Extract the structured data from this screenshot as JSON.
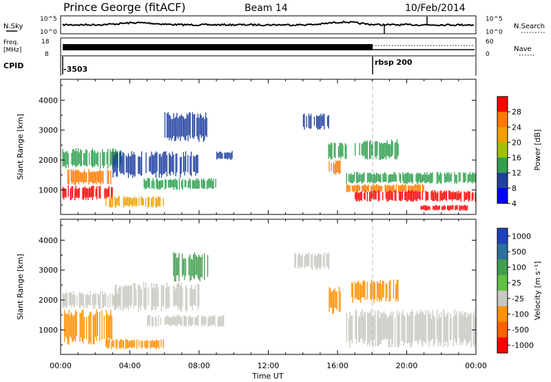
{
  "header": {
    "station": "Prince George (fitACF)",
    "beam": "Beam 14",
    "date": "10/Feb/2014"
  },
  "strip_panels": {
    "nsky": {
      "label": "N.Sky",
      "tick_top": "10^5",
      "tick_bottom": "10^0",
      "right_top": "10^5",
      "right_bottom": "10^0",
      "right_label": "N.Search"
    },
    "freq": {
      "label_top": "Freq.",
      "label_mid": "[MHz]",
      "tick_top": "18",
      "tick_bottom": "8",
      "right_top": "60",
      "right_bottom": "0",
      "right_label": "Nave"
    },
    "cpid": {
      "label": "CPID",
      "entries": [
        {
          "time_h": 0.0,
          "text": "-3503"
        },
        {
          "time_h": 18.0,
          "text": "rbsp 200"
        }
      ]
    }
  },
  "chart_data": [
    {
      "type": "heatmap",
      "name": "power-panel",
      "ylabel": "Slant Range [km]",
      "x_ticks": [
        "00:00",
        "04:00",
        "08:00",
        "12:00",
        "16:00",
        "20:00",
        "00:00"
      ],
      "x_range_hours": [
        0,
        24
      ],
      "ylim": [
        180,
        4700
      ],
      "y_ticks": [
        1000,
        2000,
        3000,
        4000
      ],
      "colorbar": {
        "label": "Power [dB]",
        "ticks": [
          "28",
          "24",
          "20",
          "16",
          "12",
          "8",
          "4"
        ],
        "colors": [
          "#ff0000",
          "#ff7a00",
          "#f0a000",
          "#a0c000",
          "#30a050",
          "#2040a0",
          "#0000ff"
        ]
      },
      "regions": [
        {
          "t0": 0.1,
          "t1": 3.0,
          "r0": 650,
          "r1": 1150,
          "color": "#ff0000"
        },
        {
          "t0": 0.2,
          "t1": 3.0,
          "r0": 1150,
          "r1": 1700,
          "color": "#ff7a00"
        },
        {
          "t0": 0.1,
          "t1": 3.5,
          "r0": 1700,
          "r1": 2400,
          "color": "#30a050"
        },
        {
          "t0": 2.6,
          "t1": 6.0,
          "r0": 400,
          "r1": 800,
          "color": "#f0a000"
        },
        {
          "t0": 3.0,
          "t1": 8.0,
          "r0": 1400,
          "r1": 2300,
          "color": "#2040a0"
        },
        {
          "t0": 4.8,
          "t1": 9.0,
          "r0": 1000,
          "r1": 1400,
          "color": "#30a050"
        },
        {
          "t0": 9.0,
          "t1": 10.0,
          "r0": 2000,
          "r1": 2300,
          "color": "#2040a0"
        },
        {
          "t0": 6.0,
          "t1": 8.5,
          "r0": 2600,
          "r1": 3600,
          "color": "#2040a0"
        },
        {
          "t0": 14.0,
          "t1": 15.5,
          "r0": 3000,
          "r1": 3600,
          "color": "#2040a0"
        },
        {
          "t0": 15.5,
          "t1": 16.2,
          "r0": 1500,
          "r1": 2000,
          "color": "#ff7a00"
        },
        {
          "t0": 15.4,
          "t1": 16.5,
          "r0": 2000,
          "r1": 2600,
          "color": "#30a050"
        },
        {
          "t0": 17.0,
          "t1": 19.5,
          "r0": 2000,
          "r1": 2700,
          "color": "#30a050"
        },
        {
          "t0": 16.5,
          "t1": 21.0,
          "r0": 900,
          "r1": 1200,
          "color": "#ff7a00"
        },
        {
          "t0": 16.5,
          "t1": 24.0,
          "r0": 1200,
          "r1": 1600,
          "color": "#30a050"
        },
        {
          "t0": 17.0,
          "t1": 24.0,
          "r0": 600,
          "r1": 1000,
          "color": "#ff0000"
        },
        {
          "t0": 20.8,
          "t1": 23.5,
          "r0": 300,
          "r1": 500,
          "color": "#ff0000"
        }
      ]
    },
    {
      "type": "heatmap",
      "name": "velocity-panel",
      "ylabel": "Slant Range [km]",
      "xlabel": "Time UT",
      "x_ticks": [
        "00:00",
        "04:00",
        "08:00",
        "12:00",
        "16:00",
        "20:00",
        "00:00"
      ],
      "x_range_hours": [
        0,
        24
      ],
      "ylim": [
        180,
        4700
      ],
      "y_ticks": [
        1000,
        2000,
        3000,
        4000
      ],
      "colorbar": {
        "label": "Velocity [m s⁻¹]",
        "ticks": [
          "1000",
          "500",
          "100",
          "25",
          "-25",
          "-100",
          "-500",
          "-1000"
        ],
        "colors": [
          "#2040c0",
          "#2a70a0",
          "#40a050",
          "#60c040",
          "#c8c8c0",
          "#ff9000",
          "#ff6000",
          "#ff0000"
        ]
      },
      "regions": [
        {
          "t0": 0.2,
          "t1": 3.0,
          "r0": 500,
          "r1": 1700,
          "color": "#ff9000"
        },
        {
          "t0": 0.1,
          "t1": 3.5,
          "r0": 1700,
          "r1": 2300,
          "color": "#c8c8c0"
        },
        {
          "t0": 3.0,
          "t1": 8.0,
          "r0": 1600,
          "r1": 2600,
          "color": "#c8c8c0"
        },
        {
          "t0": 2.6,
          "t1": 6.0,
          "r0": 350,
          "r1": 700,
          "color": "#ff9000"
        },
        {
          "t0": 5.0,
          "t1": 9.5,
          "r0": 1100,
          "r1": 1500,
          "color": "#c8c8c0"
        },
        {
          "t0": 6.5,
          "t1": 8.5,
          "r0": 2600,
          "r1": 3600,
          "color": "#40a050"
        },
        {
          "t0": 13.5,
          "t1": 15.5,
          "r0": 3000,
          "r1": 3600,
          "color": "#c8c8c0"
        },
        {
          "t0": 15.5,
          "t1": 16.2,
          "r0": 1500,
          "r1": 2500,
          "color": "#ff9000"
        },
        {
          "t0": 16.8,
          "t1": 19.5,
          "r0": 1900,
          "r1": 2700,
          "color": "#ff9000"
        },
        {
          "t0": 16.5,
          "t1": 24.0,
          "r0": 400,
          "r1": 1700,
          "color": "#c8c8c0"
        }
      ]
    }
  ],
  "footer": {
    "xlabel": "Time UT"
  }
}
